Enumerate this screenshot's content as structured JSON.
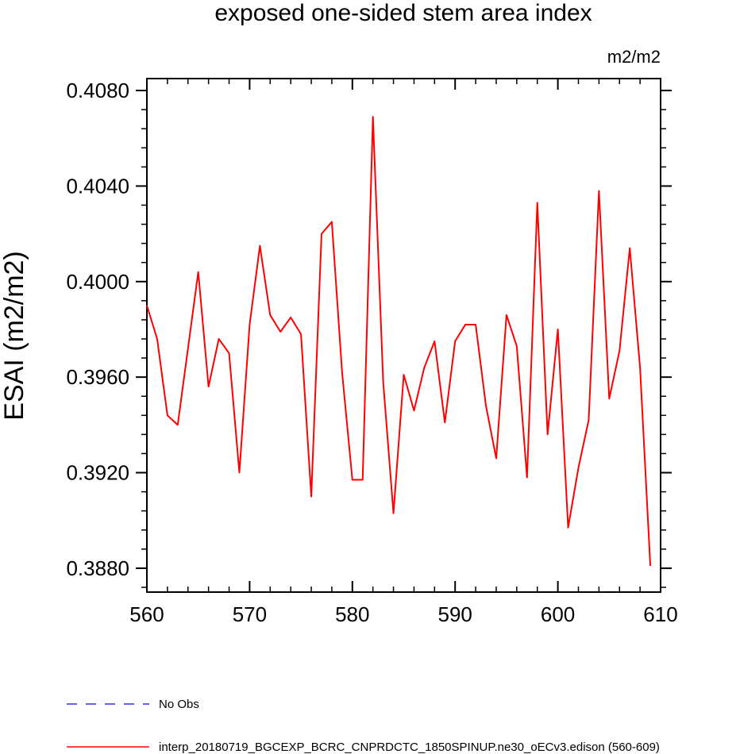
{
  "chart_data": {
    "type": "line",
    "title": "exposed one-sided stem area index",
    "units": "m2/m2",
    "ylabel": "ESAI  (m2/m2)",
    "xlabel": "",
    "xlim": [
      560,
      610
    ],
    "ylim": [
      0.387,
      0.4085
    ],
    "x_ticks": [
      560,
      570,
      580,
      590,
      600,
      610
    ],
    "y_ticks": [
      0.388,
      0.392,
      0.396,
      0.4,
      0.404,
      0.408
    ],
    "y_tick_labels": [
      "0.3880",
      "0.3920",
      "0.3960",
      "0.4000",
      "0.4040",
      "0.4080"
    ],
    "grid": false,
    "legend_position": "bottom",
    "series": [
      {
        "name": "No Obs",
        "color": "#3333cc",
        "dash": true,
        "x": [],
        "y": []
      },
      {
        "name": "interp_20180719_BGCEXP_BCRC_CNPRDCTC_1850SPINUP.ne30_oECv3.edison (560-609)",
        "color": "#ff0000",
        "dash": false,
        "x": [
          560,
          561,
          562,
          563,
          564,
          565,
          566,
          567,
          568,
          569,
          570,
          571,
          572,
          573,
          574,
          575,
          576,
          577,
          578,
          579,
          580,
          581,
          582,
          583,
          584,
          585,
          586,
          587,
          588,
          589,
          590,
          591,
          592,
          593,
          594,
          595,
          596,
          597,
          598,
          599,
          600,
          601,
          602,
          603,
          604,
          605,
          606,
          607,
          608,
          609
        ],
        "y": [
          0.399,
          0.3976,
          0.3944,
          0.394,
          0.3972,
          0.4004,
          0.3956,
          0.3976,
          0.397,
          0.392,
          0.3982,
          0.4015,
          0.3986,
          0.3979,
          0.3985,
          0.3978,
          0.391,
          0.402,
          0.4025,
          0.3962,
          0.3917,
          0.3917,
          0.4069,
          0.3958,
          0.3903,
          0.3961,
          0.3946,
          0.3964,
          0.3975,
          0.3941,
          0.3975,
          0.3982,
          0.3982,
          0.3948,
          0.3926,
          0.3986,
          0.3973,
          0.3918,
          0.4033,
          0.3936,
          0.398,
          0.3897,
          0.3922,
          0.3942,
          0.4038,
          0.3951,
          0.3971,
          0.4014,
          0.3964,
          0.3881
        ]
      }
    ]
  }
}
